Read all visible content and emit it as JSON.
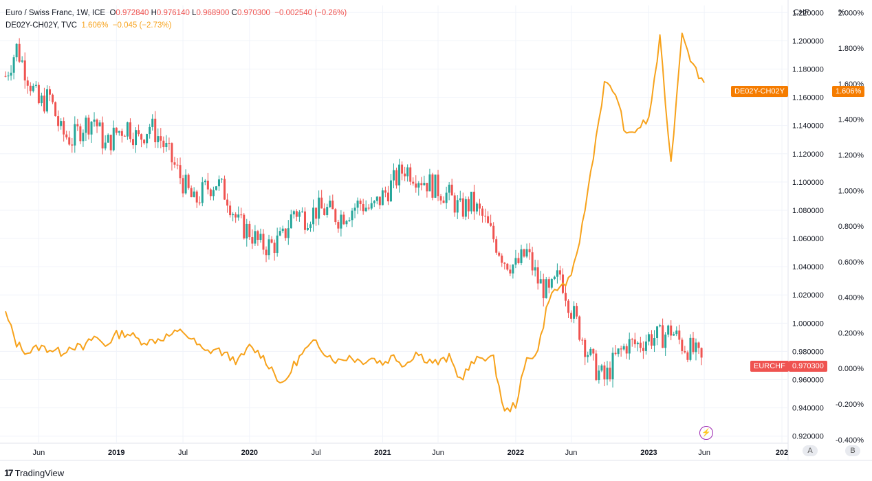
{
  "legend": {
    "symbol": "Euro / Swiss Franc, 1W, ICE",
    "o_label": "O",
    "o_val": "0.972840",
    "h_label": "H",
    "h_val": "0.976140",
    "l_label": "L",
    "l_val": "0.968900",
    "c_label": "C",
    "c_val": "0.970300",
    "change": "−0.002540 (−0.26%)",
    "symbol2": "DE02Y-CH02Y, TVC",
    "s2_val": "1.606%",
    "s2_change": "−0.045 (−2.73%)"
  },
  "axes": {
    "left_unit": "CHF",
    "right_unit": "%",
    "btn_a": "A",
    "btn_b": "B"
  },
  "badges": {
    "eurchf_label": "EURCHF",
    "eurchf_value": "0.970300",
    "spread_label": "DE02Y-CH02Y",
    "spread_value": "1.606%"
  },
  "brand": {
    "name": "TradingView",
    "logo": "17"
  },
  "colors": {
    "up": "#26a69a",
    "down": "#ef5350",
    "spread": "#f7a21b",
    "grid": "#f0f3fa",
    "text": "#131722",
    "badge_spread": "#f57c00",
    "badge_eurchf": "#ef5350"
  },
  "chart_data": {
    "type": "line",
    "title": "",
    "series": [
      {
        "name": "Euro / Swiss Franc",
        "kind": "candlestick",
        "unit": "CHF",
        "interval": "1W",
        "x": [
          "2018-03",
          "2018-04",
          "2018-05",
          "2018-06",
          "2018-07",
          "2018-08",
          "2018-09",
          "2018-10",
          "2018-11",
          "2018-12",
          "2019-01",
          "2019-02",
          "2019-03",
          "2019-04",
          "2019-05",
          "2019-06",
          "2019-07",
          "2019-08",
          "2019-09",
          "2019-10",
          "2019-11",
          "2019-12",
          "2020-01",
          "2020-02",
          "2020-03",
          "2020-04",
          "2020-05",
          "2020-06",
          "2020-07",
          "2020-08",
          "2020-09",
          "2020-10",
          "2020-11",
          "2020-12",
          "2021-01",
          "2021-02",
          "2021-03",
          "2021-04",
          "2021-05",
          "2021-06",
          "2021-07",
          "2021-08",
          "2021-09",
          "2021-10",
          "2021-11",
          "2021-12",
          "2022-01",
          "2022-02",
          "2022-03",
          "2022-04",
          "2022-05",
          "2022-06",
          "2022-07",
          "2022-08",
          "2022-09",
          "2022-10",
          "2022-11",
          "2022-12",
          "2023-01",
          "2023-02",
          "2023-03",
          "2023-04",
          "2023-05",
          "2023-06"
        ],
        "values": [
          1.175,
          1.195,
          1.175,
          1.155,
          1.16,
          1.135,
          1.13,
          1.14,
          1.145,
          1.125,
          1.135,
          1.14,
          1.13,
          1.14,
          1.13,
          1.115,
          1.1,
          1.085,
          1.095,
          1.1,
          1.09,
          1.07,
          1.065,
          1.055,
          1.055,
          1.06,
          1.08,
          1.075,
          1.08,
          1.08,
          1.075,
          1.08,
          1.085,
          1.08,
          1.09,
          1.1,
          1.11,
          1.105,
          1.1,
          1.095,
          1.09,
          1.08,
          1.085,
          1.075,
          1.06,
          1.045,
          1.04,
          1.05,
          1.03,
          1.02,
          1.035,
          1.01,
          0.99,
          0.97,
          0.96,
          0.975,
          0.985,
          0.985,
          0.99,
          0.99,
          0.995,
          0.985,
          0.98,
          0.97
        ]
      },
      {
        "name": "DE02Y-CH02Y",
        "kind": "line",
        "unit": "%",
        "x": [
          "2018-03",
          "2018-04",
          "2018-05",
          "2018-06",
          "2018-07",
          "2018-08",
          "2018-09",
          "2018-10",
          "2018-11",
          "2018-12",
          "2019-01",
          "2019-02",
          "2019-03",
          "2019-04",
          "2019-05",
          "2019-06",
          "2019-07",
          "2019-08",
          "2019-09",
          "2019-10",
          "2019-11",
          "2019-12",
          "2020-01",
          "2020-02",
          "2020-03",
          "2020-04",
          "2020-05",
          "2020-06",
          "2020-07",
          "2020-08",
          "2020-09",
          "2020-10",
          "2020-11",
          "2020-12",
          "2021-01",
          "2021-02",
          "2021-03",
          "2021-04",
          "2021-05",
          "2021-06",
          "2021-07",
          "2021-08",
          "2021-09",
          "2021-10",
          "2021-11",
          "2021-12",
          "2022-01",
          "2022-02",
          "2022-03",
          "2022-04",
          "2022-05",
          "2022-06",
          "2022-07",
          "2022-08",
          "2022-09",
          "2022-10",
          "2022-11",
          "2022-12",
          "2023-01",
          "2023-02",
          "2023-03",
          "2023-04",
          "2023-05",
          "2023-06"
        ],
        "values": [
          0.31,
          0.14,
          0.09,
          0.12,
          0.11,
          0.09,
          0.13,
          0.11,
          0.18,
          0.13,
          0.19,
          0.2,
          0.16,
          0.15,
          0.17,
          0.19,
          0.21,
          0.15,
          0.09,
          0.11,
          0.07,
          0.04,
          0.12,
          0.08,
          0.0,
          -0.1,
          0.02,
          0.1,
          0.15,
          0.08,
          0.04,
          0.07,
          0.04,
          0.06,
          0.03,
          0.07,
          0.02,
          0.09,
          0.05,
          0.03,
          0.06,
          -0.06,
          0.02,
          0.07,
          0.05,
          -0.25,
          -0.2,
          0.05,
          0.1,
          0.4,
          0.46,
          0.5,
          0.8,
          1.2,
          1.6,
          1.55,
          1.3,
          1.35,
          1.4,
          1.85,
          1.15,
          1.9,
          1.7,
          1.606
        ]
      }
    ],
    "y_left": {
      "label": "CHF",
      "ticks": [
        "0.920000",
        "0.940000",
        "0.960000",
        "0.980000",
        "1.000000",
        "1.020000",
        "1.040000",
        "1.060000",
        "1.080000",
        "1.100000",
        "1.120000",
        "1.140000",
        "1.160000",
        "1.180000",
        "1.200000",
        "1.220000"
      ],
      "range": [
        0.915,
        1.225
      ]
    },
    "y_right": {
      "label": "%",
      "ticks": [
        "-0.400%",
        "-0.200%",
        "0.000%",
        "0.200%",
        "0.400%",
        "0.600%",
        "0.800%",
        "1.000%",
        "1.200%",
        "1.400%",
        "1.600%",
        "1.800%",
        "2.000%"
      ],
      "range": [
        -0.42,
        2.04
      ]
    },
    "x_ticks": [
      {
        "label": "Jun",
        "date": "2018-06"
      },
      {
        "label": "2019",
        "date": "2019-01"
      },
      {
        "label": "Jul",
        "date": "2019-07"
      },
      {
        "label": "2020",
        "date": "2020-01"
      },
      {
        "label": "Jul",
        "date": "2020-07"
      },
      {
        "label": "2021",
        "date": "2021-01"
      },
      {
        "label": "Jun",
        "date": "2021-06"
      },
      {
        "label": "2022",
        "date": "2022-01"
      },
      {
        "label": "Jun",
        "date": "2022-06"
      },
      {
        "label": "2023",
        "date": "2023-01"
      },
      {
        "label": "Jun",
        "date": "2023-06"
      },
      {
        "label": "202",
        "date": "2024-01"
      }
    ],
    "x_range": [
      "2018-03",
      "2024-01"
    ],
    "grid": true
  }
}
